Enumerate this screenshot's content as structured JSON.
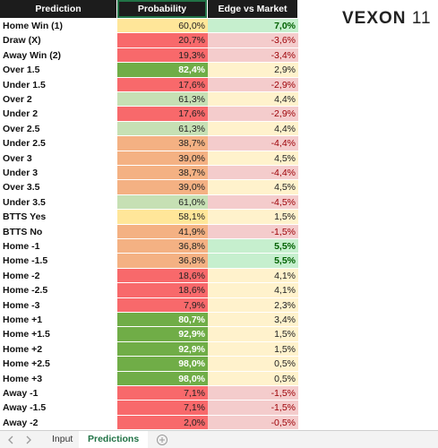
{
  "logo": {
    "name": "VEXON",
    "number": "11"
  },
  "table": {
    "header": [
      "Prediction",
      "Probability",
      "Edge vs Market"
    ],
    "rows": [
      {
        "prediction": "Home Win (1)",
        "probability": "60,0%",
        "edge": "7,0%",
        "prob_fill": "#ffe699",
        "edge_fill": "#c6efce"
      },
      {
        "prediction": "Draw (X)",
        "probability": "20,7%",
        "edge": "-3,6%",
        "prob_fill": "#f8696b",
        "edge_fill": "#f4cccc"
      },
      {
        "prediction": "Away Win (2)",
        "probability": "19,3%",
        "edge": "-3,4%",
        "prob_fill": "#f8696b",
        "edge_fill": "#f4cccc"
      },
      {
        "prediction": "Over 1.5",
        "probability": "82,4%",
        "edge": "2,9%",
        "prob_fill": "#70ad47",
        "edge_fill": "#fff2cc"
      },
      {
        "prediction": "Under 1.5",
        "probability": "17,6%",
        "edge": "-2,9%",
        "prob_fill": "#f8696b",
        "edge_fill": "#f4cccc"
      },
      {
        "prediction": "Over 2",
        "probability": "61,3%",
        "edge": "4,4%",
        "prob_fill": "#c6e0b4",
        "edge_fill": "#fff2cc"
      },
      {
        "prediction": "Under 2",
        "probability": "17,6%",
        "edge": "-2,9%",
        "prob_fill": "#f8696b",
        "edge_fill": "#f4cccc"
      },
      {
        "prediction": "Over 2.5",
        "probability": "61,3%",
        "edge": "4,4%",
        "prob_fill": "#c6e0b4",
        "edge_fill": "#fff2cc"
      },
      {
        "prediction": "Under 2.5",
        "probability": "38,7%",
        "edge": "-4,4%",
        "prob_fill": "#f4b183",
        "edge_fill": "#f4cccc"
      },
      {
        "prediction": "Over 3",
        "probability": "39,0%",
        "edge": "4,5%",
        "prob_fill": "#f4b183",
        "edge_fill": "#fff2cc"
      },
      {
        "prediction": "Under 3",
        "probability": "38,7%",
        "edge": "-4,4%",
        "prob_fill": "#f4b183",
        "edge_fill": "#f4cccc"
      },
      {
        "prediction": "Over 3.5",
        "probability": "39,0%",
        "edge": "4,5%",
        "prob_fill": "#f4b183",
        "edge_fill": "#fff2cc"
      },
      {
        "prediction": "Under 3.5",
        "probability": "61,0%",
        "edge": "-4,5%",
        "prob_fill": "#c6e0b4",
        "edge_fill": "#f4cccc"
      },
      {
        "prediction": "BTTS Yes",
        "probability": "58,1%",
        "edge": "1,5%",
        "prob_fill": "#ffe699",
        "edge_fill": "#fff2cc"
      },
      {
        "prediction": "BTTS No",
        "probability": "41,9%",
        "edge": "-1,5%",
        "prob_fill": "#f4b183",
        "edge_fill": "#f4cccc"
      },
      {
        "prediction": "Home -1",
        "probability": "36,8%",
        "edge": "5,5%",
        "prob_fill": "#f4b183",
        "edge_fill": "#c6efce"
      },
      {
        "prediction": "Home -1.5",
        "probability": "36,8%",
        "edge": "5,5%",
        "prob_fill": "#f4b183",
        "edge_fill": "#c6efce"
      },
      {
        "prediction": "Home -2",
        "probability": "18,6%",
        "edge": "4,1%",
        "prob_fill": "#f8696b",
        "edge_fill": "#fff2cc"
      },
      {
        "prediction": "Home -2.5",
        "probability": "18,6%",
        "edge": "4,1%",
        "prob_fill": "#f8696b",
        "edge_fill": "#fff2cc"
      },
      {
        "prediction": "Home -3",
        "probability": "7,9%",
        "edge": "2,3%",
        "prob_fill": "#f8696b",
        "edge_fill": "#fff2cc"
      },
      {
        "prediction": "Home +1",
        "probability": "80,7%",
        "edge": "3,4%",
        "prob_fill": "#70ad47",
        "edge_fill": "#fff2cc"
      },
      {
        "prediction": "Home +1.5",
        "probability": "92,9%",
        "edge": "1,5%",
        "prob_fill": "#70ad47",
        "edge_fill": "#fff2cc"
      },
      {
        "prediction": "Home +2",
        "probability": "92,9%",
        "edge": "1,5%",
        "prob_fill": "#70ad47",
        "edge_fill": "#fff2cc"
      },
      {
        "prediction": "Home +2.5",
        "probability": "98,0%",
        "edge": "0,5%",
        "prob_fill": "#70ad47",
        "edge_fill": "#fff2cc"
      },
      {
        "prediction": "Home +3",
        "probability": "98,0%",
        "edge": "0,5%",
        "prob_fill": "#70ad47",
        "edge_fill": "#fff2cc"
      },
      {
        "prediction": "Away -1",
        "probability": "7,1%",
        "edge": "-1,5%",
        "prob_fill": "#f8696b",
        "edge_fill": "#f4cccc"
      },
      {
        "prediction": "Away -1.5",
        "probability": "7,1%",
        "edge": "-1,5%",
        "prob_fill": "#f8696b",
        "edge_fill": "#f4cccc"
      },
      {
        "prediction": "Away -2",
        "probability": "2,0%",
        "edge": "-0,5%",
        "prob_fill": "#f8696b",
        "edge_fill": "#f4cccc"
      }
    ]
  },
  "tabs": [
    "Input",
    "Predictions"
  ]
}
